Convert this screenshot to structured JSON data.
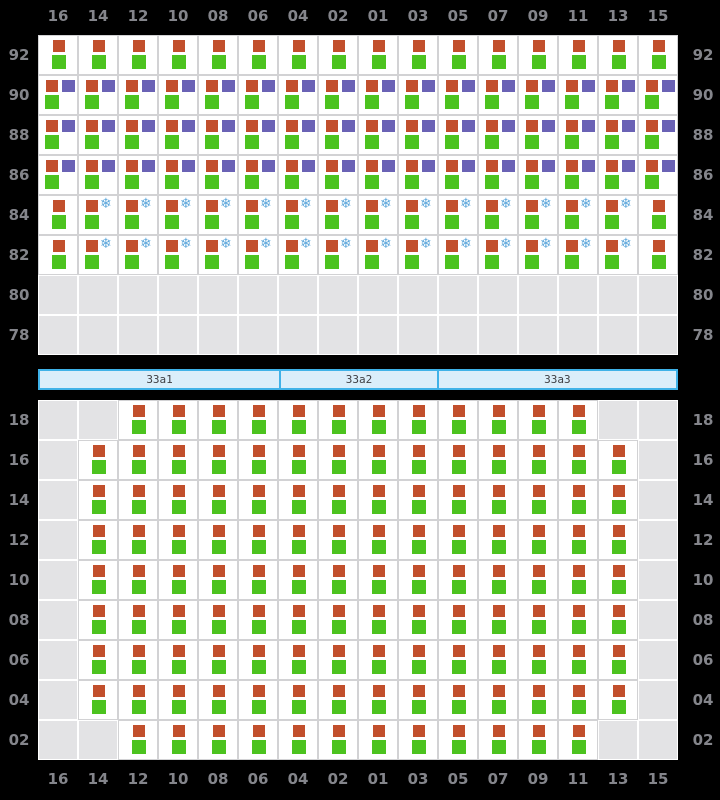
{
  "colors": {
    "page_bg": "#000000",
    "label": "#84858b",
    "cell_border": "#d2d2d4",
    "cell_bg": "#ffffff",
    "empty_bg": "#e3e3e5",
    "empty_border": "#ffffff",
    "red": "#c24f2c",
    "green": "#4cc31f",
    "purple": "#6a62b5",
    "snow": "#5fa8dc",
    "bar_fill": "#daeefa",
    "bar_border": "#3fb2e8",
    "bar_text": "#3f4045"
  },
  "icons": {
    "snowflake": "❄",
    "red_square": "red-square-icon",
    "green_square": "green-square-icon",
    "purple_square": "purple-square-icon"
  },
  "columns": [
    "16",
    "14",
    "12",
    "10",
    "08",
    "06",
    "04",
    "02",
    "01",
    "03",
    "05",
    "07",
    "09",
    "11",
    "13",
    "15"
  ],
  "cell_codes_legend": {
    "E": "empty",
    "RG": "red+green squares",
    "RPG": "red+purple+green squares",
    "RGS": "red+green squares with snowflake"
  },
  "top_section": {
    "row_labels": [
      "92",
      "90",
      "88",
      "86",
      "84",
      "82",
      "80",
      "78"
    ],
    "rows": [
      {
        "label": "92",
        "cells": [
          "RG",
          "RG",
          "RG",
          "RG",
          "RG",
          "RG",
          "RG",
          "RG",
          "RG",
          "RG",
          "RG",
          "RG",
          "RG",
          "RG",
          "RG",
          "RG"
        ]
      },
      {
        "label": "90",
        "cells": [
          "RPG",
          "RPG",
          "RPG",
          "RPG",
          "RPG",
          "RPG",
          "RPG",
          "RPG",
          "RPG",
          "RPG",
          "RPG",
          "RPG",
          "RPG",
          "RPG",
          "RPG",
          "RPG"
        ]
      },
      {
        "label": "88",
        "cells": [
          "RPG",
          "RPG",
          "RPG",
          "RPG",
          "RPG",
          "RPG",
          "RPG",
          "RPG",
          "RPG",
          "RPG",
          "RPG",
          "RPG",
          "RPG",
          "RPG",
          "RPG",
          "RPG"
        ]
      },
      {
        "label": "86",
        "cells": [
          "RPG",
          "RPG",
          "RPG",
          "RPG",
          "RPG",
          "RPG",
          "RPG",
          "RPG",
          "RPG",
          "RPG",
          "RPG",
          "RPG",
          "RPG",
          "RPG",
          "RPG",
          "RPG"
        ]
      },
      {
        "label": "84",
        "cells": [
          "RG",
          "RGS",
          "RGS",
          "RGS",
          "RGS",
          "RGS",
          "RGS",
          "RGS",
          "RGS",
          "RGS",
          "RGS",
          "RGS",
          "RGS",
          "RGS",
          "RGS",
          "RG"
        ]
      },
      {
        "label": "82",
        "cells": [
          "RG",
          "RGS",
          "RGS",
          "RGS",
          "RGS",
          "RGS",
          "RGS",
          "RGS",
          "RGS",
          "RGS",
          "RGS",
          "RGS",
          "RGS",
          "RGS",
          "RGS",
          "RG"
        ]
      },
      {
        "label": "80",
        "cells": [
          "E",
          "E",
          "E",
          "E",
          "E",
          "E",
          "E",
          "E",
          "E",
          "E",
          "E",
          "E",
          "E",
          "E",
          "E",
          "E"
        ]
      },
      {
        "label": "78",
        "cells": [
          "E",
          "E",
          "E",
          "E",
          "E",
          "E",
          "E",
          "E",
          "E",
          "E",
          "E",
          "E",
          "E",
          "E",
          "E",
          "E"
        ]
      }
    ]
  },
  "divider_bar": {
    "segments": [
      {
        "label": "33a1",
        "width_pct": 37.6
      },
      {
        "label": "33a2",
        "width_pct": 24.8
      },
      {
        "label": "33a3",
        "width_pct": 37.6
      }
    ]
  },
  "bottom_section": {
    "row_labels": [
      "18",
      "16",
      "14",
      "12",
      "10",
      "08",
      "06",
      "04",
      "02"
    ],
    "rows": [
      {
        "label": "18",
        "cells": [
          "E",
          "E",
          "RG",
          "RG",
          "RG",
          "RG",
          "RG",
          "RG",
          "RG",
          "RG",
          "RG",
          "RG",
          "RG",
          "RG",
          "E",
          "E"
        ]
      },
      {
        "label": "16",
        "cells": [
          "E",
          "RG",
          "RG",
          "RG",
          "RG",
          "RG",
          "RG",
          "RG",
          "RG",
          "RG",
          "RG",
          "RG",
          "RG",
          "RG",
          "RG",
          "E"
        ]
      },
      {
        "label": "14",
        "cells": [
          "E",
          "RG",
          "RG",
          "RG",
          "RG",
          "RG",
          "RG",
          "RG",
          "RG",
          "RG",
          "RG",
          "RG",
          "RG",
          "RG",
          "RG",
          "E"
        ]
      },
      {
        "label": "12",
        "cells": [
          "E",
          "RG",
          "RG",
          "RG",
          "RG",
          "RG",
          "RG",
          "RG",
          "RG",
          "RG",
          "RG",
          "RG",
          "RG",
          "RG",
          "RG",
          "E"
        ]
      },
      {
        "label": "10",
        "cells": [
          "E",
          "RG",
          "RG",
          "RG",
          "RG",
          "RG",
          "RG",
          "RG",
          "RG",
          "RG",
          "RG",
          "RG",
          "RG",
          "RG",
          "RG",
          "E"
        ]
      },
      {
        "label": "08",
        "cells": [
          "E",
          "RG",
          "RG",
          "RG",
          "RG",
          "RG",
          "RG",
          "RG",
          "RG",
          "RG",
          "RG",
          "RG",
          "RG",
          "RG",
          "RG",
          "E"
        ]
      },
      {
        "label": "06",
        "cells": [
          "E",
          "RG",
          "RG",
          "RG",
          "RG",
          "RG",
          "RG",
          "RG",
          "RG",
          "RG",
          "RG",
          "RG",
          "RG",
          "RG",
          "RG",
          "E"
        ]
      },
      {
        "label": "04",
        "cells": [
          "E",
          "RG",
          "RG",
          "RG",
          "RG",
          "RG",
          "RG",
          "RG",
          "RG",
          "RG",
          "RG",
          "RG",
          "RG",
          "RG",
          "RG",
          "E"
        ]
      },
      {
        "label": "02",
        "cells": [
          "E",
          "E",
          "RG",
          "RG",
          "RG",
          "RG",
          "RG",
          "RG",
          "RG",
          "RG",
          "RG",
          "RG",
          "RG",
          "RG",
          "E",
          "E"
        ]
      }
    ]
  }
}
